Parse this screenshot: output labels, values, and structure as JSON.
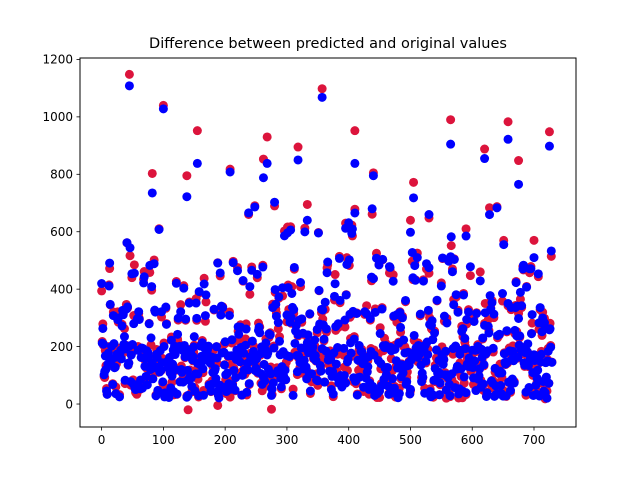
{
  "chart_data": {
    "type": "scatter",
    "title": "Difference between predicted and original values",
    "xlabel": "",
    "ylabel": "",
    "xlim": [
      -35,
      768
    ],
    "ylim": [
      -80,
      1205
    ],
    "xticks": [
      0,
      100,
      200,
      300,
      400,
      500,
      600,
      700
    ],
    "yticks": [
      0,
      200,
      400,
      600,
      800,
      1000,
      1200
    ],
    "grid": false,
    "legend": "none",
    "n_points_per_series": 730,
    "series": [
      {
        "color": "#dc143c",
        "notable_points": [
          [
            45,
            1148
          ],
          [
            100,
            1040
          ],
          [
            357,
            1098
          ],
          [
            410,
            952
          ],
          [
            155,
            952
          ],
          [
            268,
            930
          ],
          [
            318,
            895
          ],
          [
            565,
            990
          ],
          [
            658,
            983
          ],
          [
            725,
            948
          ],
          [
            620,
            888
          ],
          [
            675,
            848
          ],
          [
            82,
            803
          ],
          [
            138,
            795
          ],
          [
            208,
            818
          ],
          [
            440,
            805
          ],
          [
            505,
            772
          ],
          [
            262,
            853
          ],
          [
            333,
            695
          ],
          [
            395,
            630
          ],
          [
            500,
            640
          ],
          [
            530,
            648
          ],
          [
            590,
            610
          ],
          [
            700,
            570
          ],
          [
            140,
            -20
          ],
          [
            275,
            -18
          ],
          [
            188,
            -5
          ],
          [
            718,
            18
          ]
        ]
      },
      {
        "color": "#0000ff",
        "notable_points": [
          [
            45,
            1108
          ],
          [
            100,
            1028
          ],
          [
            357,
            1068
          ],
          [
            410,
            838
          ],
          [
            155,
            838
          ],
          [
            268,
            838
          ],
          [
            318,
            850
          ],
          [
            565,
            905
          ],
          [
            658,
            922
          ],
          [
            725,
            898
          ],
          [
            620,
            855
          ],
          [
            675,
            765
          ],
          [
            82,
            735
          ],
          [
            138,
            722
          ],
          [
            208,
            808
          ],
          [
            440,
            795
          ],
          [
            505,
            718
          ],
          [
            262,
            788
          ],
          [
            333,
            640
          ],
          [
            395,
            612
          ],
          [
            500,
            598
          ],
          [
            530,
            660
          ],
          [
            590,
            585
          ],
          [
            700,
            510
          ],
          [
            140,
            30
          ],
          [
            275,
            30
          ],
          [
            188,
            45
          ],
          [
            718,
            40
          ]
        ]
      }
    ]
  }
}
